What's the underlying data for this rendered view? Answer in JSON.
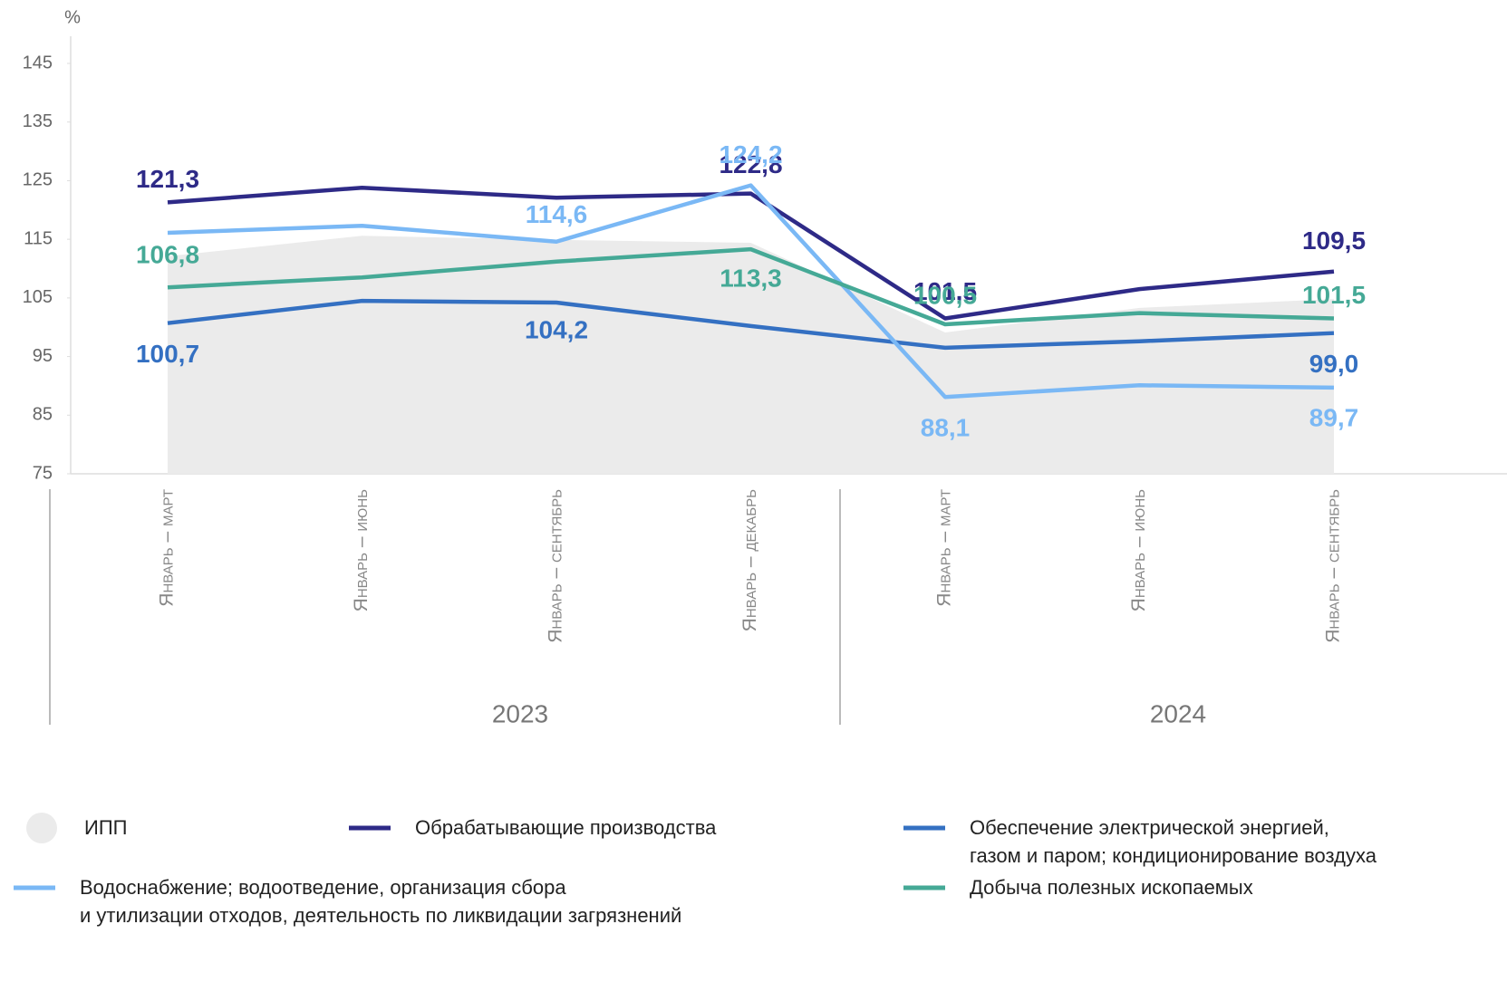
{
  "chart_data": {
    "type": "line",
    "y_label": "%",
    "categories": [
      "Январь – март",
      "Январь – июнь",
      "Январь – сентябрь",
      "Январь – декабрь",
      "Январь – март",
      "Январь – июнь",
      "Январь – сентябрь"
    ],
    "groups": [
      "2023",
      "2024"
    ],
    "ylim": [
      75,
      145
    ],
    "yticks": [
      75,
      85,
      95,
      105,
      115,
      125,
      135,
      145
    ],
    "series": [
      {
        "name": "ИПП",
        "kind": "area",
        "color": "#ebebeb",
        "values": [
          112.1,
          115.6,
          114.9,
          114.4,
          99.1,
          103.3,
          104.8
        ]
      },
      {
        "name": "Обрабатывающие производства",
        "color": "#2e2a87",
        "values": [
          121.3,
          123.8,
          122.1,
          122.8,
          101.5,
          106.5,
          109.5
        ],
        "value_labels": [
          "121,3",
          null,
          null,
          "122,8",
          "101,5",
          null,
          "109,5"
        ]
      },
      {
        "name": "Обеспечение электрической энергией,\nгазом и паром; кондиционирование воздуха",
        "color": "#3470c2",
        "values": [
          100.7,
          104.5,
          104.2,
          100.2,
          96.5,
          97.6,
          99.0
        ],
        "value_labels": [
          "100,7",
          null,
          "104,2",
          null,
          null,
          null,
          "99,0"
        ]
      },
      {
        "name": "Водоснабжение; водоотведение, организация сбора\nи утилизации отходов, деятельность по ликвидации загрязнений",
        "color": "#7ab8f5",
        "values": [
          116.1,
          117.3,
          114.6,
          124.2,
          88.1,
          90.1,
          89.7
        ],
        "value_labels": [
          null,
          null,
          "114,6",
          "124,2",
          "88,1",
          null,
          "89,7"
        ]
      },
      {
        "name": "Добыча полезных ископаемых",
        "color": "#45a996",
        "values": [
          106.8,
          108.5,
          111.2,
          113.3,
          100.5,
          102.4,
          101.5
        ],
        "value_labels": [
          "106,8",
          null,
          null,
          "113,3",
          "100,5",
          null,
          "101,5"
        ]
      }
    ]
  }
}
